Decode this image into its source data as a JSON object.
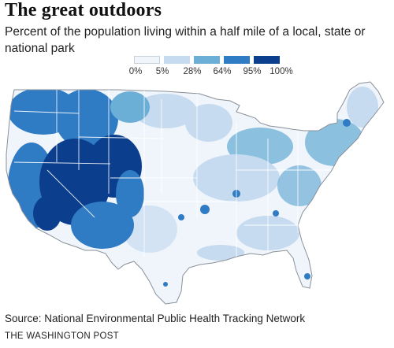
{
  "header": {
    "title": "The great outdoors",
    "subtitle": "Percent of the population living within a half mile of a local, state or national park"
  },
  "legend": {
    "labels": [
      "0%",
      "5%",
      "28%",
      "64%",
      "95%",
      "100%"
    ],
    "colors": [
      "#f0f5fc",
      "#c6dbef",
      "#6baed6",
      "#2f7bc4",
      "#0b3f8e"
    ]
  },
  "footer": {
    "source": "Source: National Environmental Public Health Tracking Network",
    "credit": "THE WASHINGTON POST"
  }
}
